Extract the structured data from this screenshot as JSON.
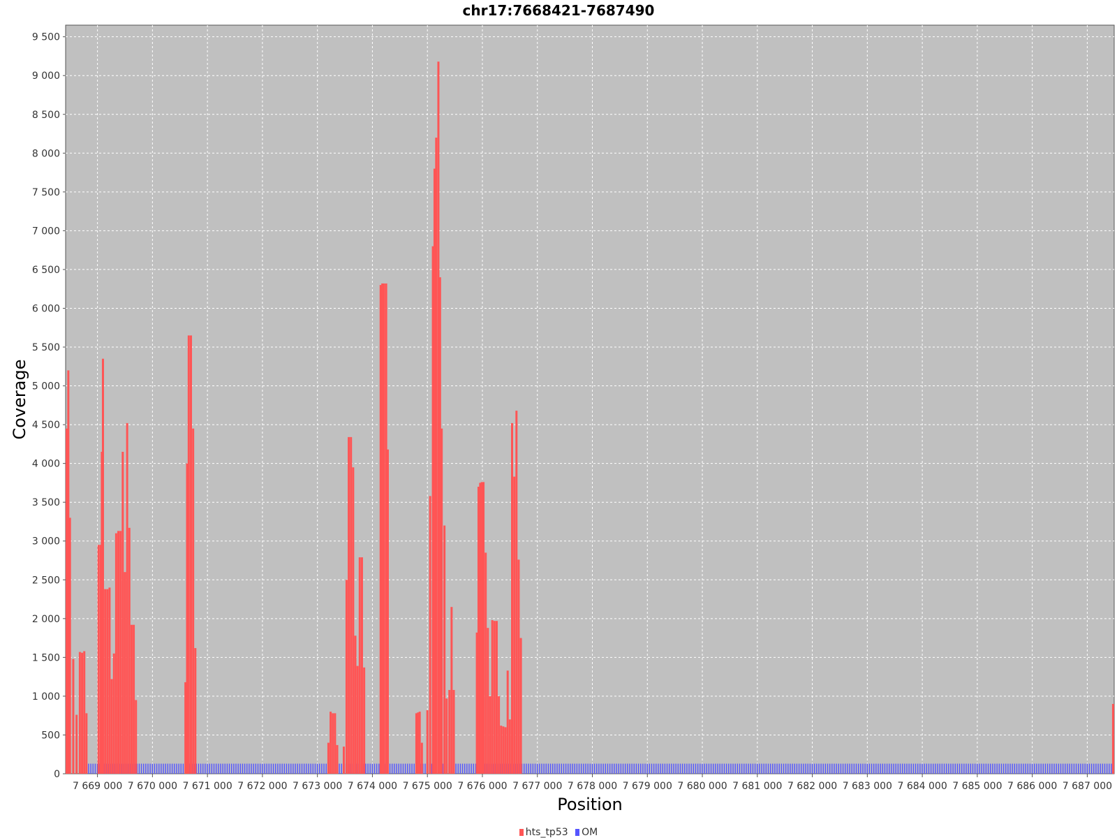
{
  "chart_data": {
    "type": "bar",
    "title": "chr17:7668421-7687490",
    "xlabel": "Position",
    "ylabel": "Coverage",
    "xlim": [
      7668421,
      7687490
    ],
    "ylim": [
      0,
      9650
    ],
    "y_ticks": [
      0,
      500,
      1000,
      1500,
      2000,
      2500,
      3000,
      3500,
      4000,
      4500,
      5000,
      5500,
      6000,
      6500,
      7000,
      7500,
      8000,
      8500,
      9000,
      9500
    ],
    "y_tick_labels": [
      "0",
      "500",
      "1 000",
      "1 500",
      "2 000",
      "2 500",
      "3 000",
      "3 500",
      "4 000",
      "4 500",
      "5 000",
      "5 500",
      "6 000",
      "6 500",
      "7 000",
      "7 500",
      "8 000",
      "8 500",
      "9 000",
      "9 500"
    ],
    "x_ticks": [
      7669000,
      7670000,
      7671000,
      7672000,
      7673000,
      7674000,
      7675000,
      7676000,
      7677000,
      7678000,
      7679000,
      7680000,
      7681000,
      7682000,
      7683000,
      7684000,
      7685000,
      7686000,
      7687000
    ],
    "x_tick_labels": [
      "7 669 000",
      "7 670 000",
      "7 671 000",
      "7 672 000",
      "7 673 000",
      "7 674 000",
      "7 675 000",
      "7 676 000",
      "7 677 000",
      "7 678 000",
      "7 679 000",
      "7 680 000",
      "7 681 000",
      "7 682 000",
      "7 683 000",
      "7 684 000",
      "7 685 000",
      "7 686 000",
      "7 687 000"
    ],
    "grid": true,
    "legend_position": "bottom-center",
    "plot_background": "#c0c0c0",
    "series": [
      {
        "name": "hts_tp53",
        "color": "#ff5555",
        "x": [
          7668440,
          7668470,
          7668500,
          7668560,
          7668620,
          7668680,
          7668720,
          7668760,
          7668800,
          7668840,
          7668880,
          7669020,
          7669060,
          7669080,
          7669100,
          7669140,
          7669180,
          7669220,
          7669260,
          7669300,
          7669340,
          7669380,
          7669420,
          7669460,
          7669500,
          7669540,
          7669580,
          7669620,
          7669660,
          7669700,
          7670600,
          7670630,
          7670660,
          7670700,
          7670740,
          7670780,
          7673200,
          7673240,
          7673280,
          7673320,
          7673360,
          7673480,
          7673530,
          7673570,
          7673610,
          7673650,
          7673690,
          7673730,
          7673770,
          7673810,
          7673850,
          7674150,
          7674180,
          7674210,
          7674250,
          7674280,
          7674800,
          7674830,
          7674860,
          7674900,
          7675000,
          7675050,
          7675100,
          7675130,
          7675160,
          7675200,
          7675230,
          7675260,
          7675310,
          7675350,
          7675400,
          7675440,
          7675480,
          7675900,
          7675930,
          7675960,
          7675990,
          7676020,
          7676060,
          7676100,
          7676140,
          7676180,
          7676220,
          7676260,
          7676300,
          7676340,
          7676380,
          7676420,
          7676460,
          7676500,
          7676540,
          7676580,
          7676620,
          7676660,
          7676700,
          7687470
        ],
        "values": [
          4450,
          5200,
          3300,
          1480,
          760,
          1570,
          1560,
          1580,
          780,
          0,
          0,
          2950,
          2950,
          4150,
          5350,
          2380,
          2380,
          2400,
          1220,
          1550,
          3100,
          3130,
          3130,
          4150,
          2600,
          4520,
          3170,
          1920,
          1920,
          950,
          1180,
          4000,
          5650,
          5650,
          4450,
          1620,
          400,
          800,
          780,
          780,
          370,
          350,
          2500,
          4340,
          4340,
          3950,
          1780,
          1390,
          2790,
          2790,
          1370,
          6300,
          6320,
          6320,
          6320,
          4180,
          780,
          790,
          800,
          400,
          820,
          3580,
          6800,
          7800,
          8200,
          9180,
          6400,
          4450,
          3200,
          970,
          1080,
          2150,
          1080,
          1820,
          3700,
          3750,
          3760,
          3760,
          2850,
          1880,
          1000,
          1980,
          1970,
          1970,
          1000,
          620,
          610,
          600,
          1330,
          700,
          4520,
          3830,
          4680,
          2760,
          1750,
          900
        ]
      },
      {
        "name": "OM",
        "color": "#5555ff",
        "level": 130,
        "x_start": 7668790,
        "x_end": 7687480,
        "step": 40
      }
    ]
  }
}
